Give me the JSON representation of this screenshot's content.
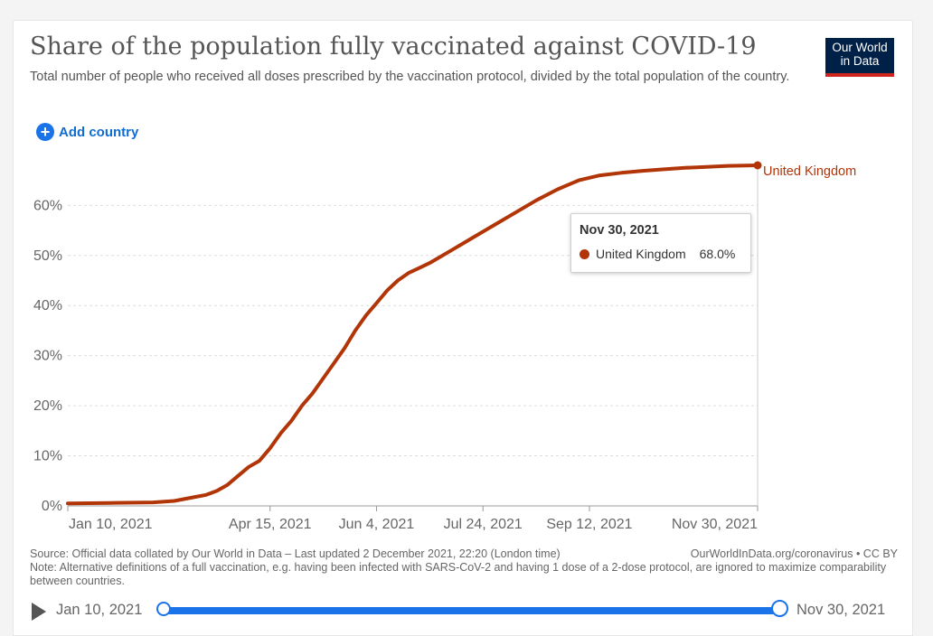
{
  "header": {
    "title": "Share of the population fully vaccinated against COVID-19",
    "subtitle": "Total number of people who received all doses prescribed by the vaccination protocol, divided by the total population of the country.",
    "logo_line1": "Our World",
    "logo_line2": "in Data"
  },
  "controls": {
    "add_country_label": "Add country"
  },
  "tooltip": {
    "date": "Nov 30, 2021",
    "entity": "United Kingdom",
    "value": "68.0%"
  },
  "footer": {
    "source": "Source: Official data collated by Our World in Data – Last updated 2 December 2021, 22:20 (London time)",
    "source_link": "OurWorldInData.org/coronavirus • CC BY",
    "note": "Note: Alternative definitions of a full vaccination, e.g. having been infected with SARS-CoV-2 and having 1 dose of a 2-dose protocol, are ignored to maximize comparability between countries."
  },
  "timeline": {
    "start_label": "Jan 10, 2021",
    "end_label": "Nov 30, 2021"
  },
  "colors": {
    "series": "#b13507",
    "accent": "#1a73e8",
    "logo_bg": "#002147",
    "logo_bar": "#ce261e"
  },
  "chart_data": {
    "type": "line",
    "title": "Share of the population fully vaccinated against COVID-19",
    "xlabel": "",
    "ylabel": "",
    "ylim": [
      0,
      68
    ],
    "yticks": [
      0,
      10,
      20,
      30,
      40,
      50,
      60
    ],
    "ytick_labels": [
      "0%",
      "10%",
      "20%",
      "30%",
      "40%",
      "50%",
      "60%"
    ],
    "xlim_days": [
      0,
      324
    ],
    "xticks": [
      {
        "day": 0,
        "label": "Jan 10, 2021"
      },
      {
        "day": 95,
        "label": "Apr 15, 2021"
      },
      {
        "day": 145,
        "label": "Jun 4, 2021"
      },
      {
        "day": 195,
        "label": "Jul 24, 2021"
      },
      {
        "day": 245,
        "label": "Sep 12, 2021"
      },
      {
        "day": 324,
        "label": "Nov 30, 2021"
      }
    ],
    "series": [
      {
        "name": "United Kingdom",
        "end_label": "United Kingdom",
        "x_days": [
          0,
          20,
          40,
          50,
          60,
          65,
          70,
          75,
          80,
          85,
          90,
          95,
          100,
          105,
          110,
          115,
          120,
          125,
          130,
          135,
          140,
          145,
          150,
          155,
          160,
          165,
          170,
          180,
          190,
          200,
          210,
          220,
          230,
          240,
          250,
          260,
          270,
          280,
          290,
          300,
          310,
          324
        ],
        "values": [
          0.5,
          0.6,
          0.7,
          1.0,
          1.8,
          2.2,
          3.0,
          4.2,
          6.0,
          7.8,
          9.0,
          11.5,
          14.5,
          17.0,
          20.0,
          22.5,
          25.5,
          28.5,
          31.5,
          35.0,
          38.0,
          40.5,
          43.0,
          45.0,
          46.5,
          47.5,
          48.5,
          51.0,
          53.5,
          56.0,
          58.5,
          61.0,
          63.2,
          65.0,
          66.0,
          66.5,
          66.9,
          67.2,
          67.5,
          67.7,
          67.9,
          68.0
        ]
      }
    ]
  }
}
